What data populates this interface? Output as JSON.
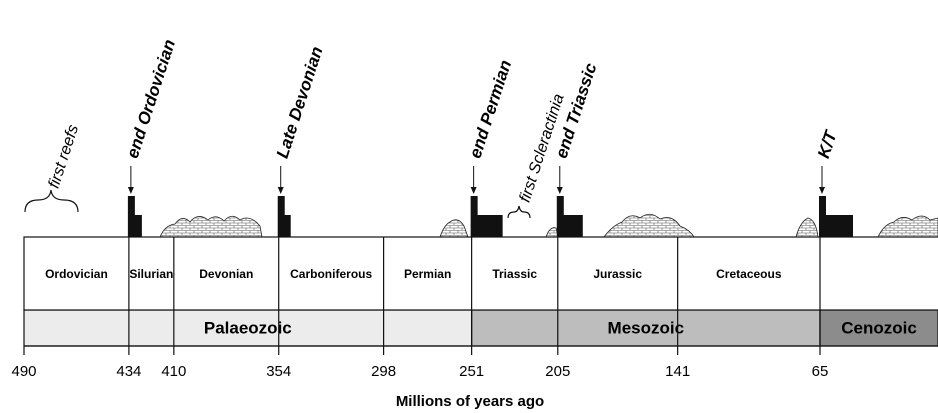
{
  "ticks": [
    490,
    434,
    410,
    354,
    298,
    251,
    205,
    141,
    65
  ],
  "periods": [
    "Ordovician",
    "Silurian",
    "Devonian",
    "Carboniferous",
    "Permian",
    "Triassic",
    "Jurassic",
    "Cretaceous"
  ],
  "eras": [
    "Palaeozoic",
    "Mesozoic",
    "Cenozoic"
  ],
  "events": [
    "end Ordovician",
    "Late Devonian",
    "end Permian",
    "end Triassic",
    "K/T"
  ],
  "notes": [
    "first reefs",
    "first Scleractinia"
  ],
  "axis_label": "Millions of years ago"
}
